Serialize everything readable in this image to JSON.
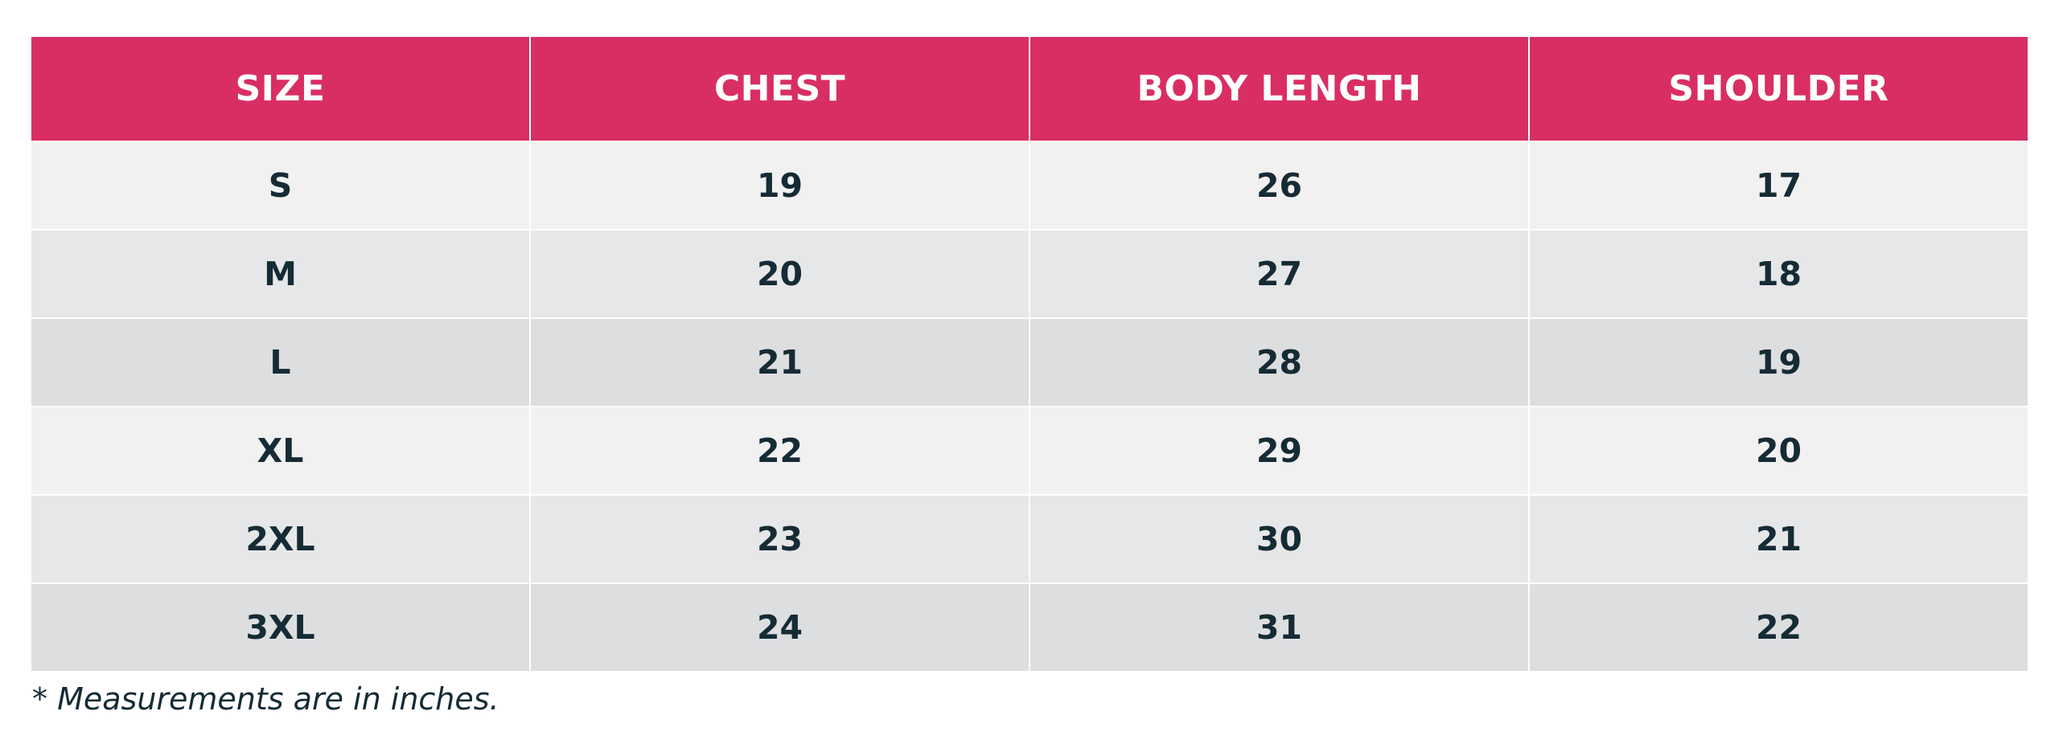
{
  "colors": {
    "header_bg": "#d92e63",
    "header_text": "#ffffff",
    "cell_text": "#152b35",
    "row_backgrounds": [
      "#f1f1f1",
      "#e6e7e8",
      "#dddee0"
    ]
  },
  "table": {
    "headers": [
      "SIZE",
      "CHEST",
      "BODY LENGTH",
      "SHOULDER"
    ],
    "rows": [
      [
        "S",
        "19",
        "26",
        "17"
      ],
      [
        "M",
        "20",
        "27",
        "18"
      ],
      [
        "L",
        "21",
        "28",
        "19"
      ],
      [
        "XL",
        "22",
        "29",
        "20"
      ],
      [
        "2XL",
        "23",
        "30",
        "21"
      ],
      [
        "3XL",
        "24",
        "31",
        "22"
      ]
    ]
  },
  "footnote": "* Measurements are in inches."
}
